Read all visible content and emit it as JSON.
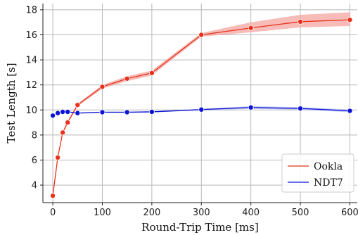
{
  "chart_data": {
    "type": "line",
    "xlabel": "Round-Trip Time [ms]",
    "ylabel": "Test Length [s]",
    "xlim": [
      -20,
      615
    ],
    "ylim": [
      2.6,
      18.5
    ],
    "xticks": [
      0,
      100,
      200,
      300,
      400,
      500,
      600
    ],
    "yticks": [
      4,
      6,
      8,
      10,
      12,
      14,
      16,
      18
    ],
    "grid": true,
    "legend_position": "bottom-right",
    "series": [
      {
        "name": "Ookla",
        "color": "#e8301a",
        "band_color": "#f4a6a0",
        "x": [
          0,
          10,
          20,
          30,
          50,
          100,
          150,
          200,
          300,
          400,
          500,
          600
        ],
        "y": [
          3.15,
          6.2,
          8.2,
          9.0,
          10.4,
          11.85,
          12.5,
          12.95,
          16.0,
          16.55,
          17.05,
          17.2
        ],
        "lower": [
          3.1,
          6.1,
          8.1,
          8.9,
          10.3,
          11.7,
          12.3,
          12.75,
          15.85,
          16.2,
          16.6,
          16.7
        ],
        "upper": [
          3.2,
          6.3,
          8.3,
          9.1,
          10.5,
          12.0,
          12.7,
          13.15,
          16.15,
          17.0,
          17.6,
          17.8
        ]
      },
      {
        "name": "NDT7",
        "color": "#0a14d4",
        "band_color": "#a9aef0",
        "x": [
          0,
          10,
          20,
          30,
          50,
          100,
          150,
          200,
          300,
          400,
          500,
          600
        ],
        "y": [
          9.55,
          9.75,
          9.85,
          9.85,
          9.75,
          9.82,
          9.82,
          9.85,
          10.03,
          10.2,
          10.12,
          9.93
        ],
        "lower": [
          9.5,
          9.7,
          9.8,
          9.8,
          9.7,
          9.77,
          9.77,
          9.8,
          9.97,
          10.1,
          10.02,
          9.83
        ],
        "upper": [
          9.6,
          9.8,
          9.9,
          9.9,
          9.8,
          9.87,
          9.87,
          9.9,
          10.09,
          10.3,
          10.22,
          10.03
        ]
      }
    ]
  }
}
